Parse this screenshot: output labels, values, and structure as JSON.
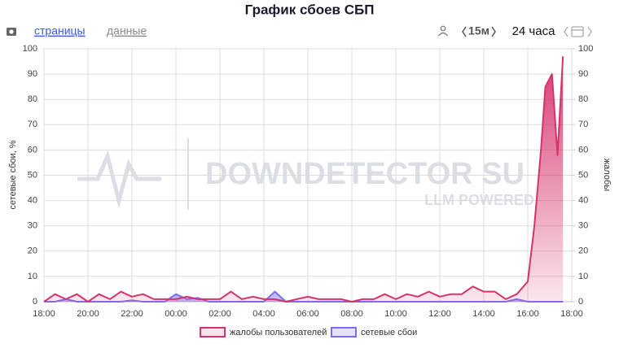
{
  "toolbar": {
    "tabs": [
      "страницы",
      "данные"
    ],
    "interval": "15м",
    "range": "24 часа"
  },
  "chart_data": {
    "type": "area",
    "title": "График сбоев СБП",
    "ylabel": "сетевые сбои, %",
    "y2label": "жалобы",
    "watermark": [
      "DOWNDETECTOR SU",
      "LLM POWERED"
    ],
    "x": [
      0,
      0.5,
      1,
      1.5,
      2,
      2.5,
      3,
      3.5,
      4,
      4.5,
      5,
      5.5,
      6,
      6.5,
      7,
      7.5,
      8,
      8.5,
      9,
      9.5,
      10,
      10.5,
      11,
      11.5,
      12,
      12.5,
      13,
      13.5,
      14,
      14.5,
      15,
      15.5,
      16,
      16.5,
      17,
      17.5,
      18,
      18.5,
      19,
      19.5,
      20,
      20.5,
      21,
      21.5,
      22,
      22.3,
      22.6,
      22.8,
      23.1,
      23.35,
      23.6
    ],
    "series": [
      {
        "name": "жалобы пользователей",
        "color": "#d6336c",
        "axis": "y2",
        "values": [
          0,
          3,
          1,
          3,
          0,
          3,
          1,
          4,
          2,
          3,
          1,
          1,
          1,
          2,
          1,
          1,
          1,
          4,
          1,
          2,
          1,
          1,
          0,
          1,
          2,
          1,
          1,
          1,
          0,
          1,
          1,
          3,
          1,
          3,
          2,
          4,
          2,
          3,
          3,
          6,
          4,
          4,
          1,
          3,
          8,
          30,
          60,
          85,
          90,
          58,
          97
        ]
      },
      {
        "name": "сетевые сбои",
        "color": "#7b6ff0",
        "values": [
          0,
          0,
          1,
          0,
          0,
          0,
          0,
          0,
          0.5,
          0,
          0,
          0,
          3,
          1,
          1.5,
          0,
          0,
          0,
          0,
          0,
          0,
          4,
          0,
          0,
          0,
          0,
          0,
          0,
          0,
          0,
          0,
          0,
          0,
          0,
          0,
          0,
          0,
          0,
          0,
          0,
          0,
          0,
          0,
          1,
          0,
          0,
          0,
          0,
          0,
          0,
          0
        ]
      }
    ],
    "xlim": [
      0,
      24
    ],
    "xticks": [
      {
        "value": 0,
        "label": "18:00"
      },
      {
        "value": 2,
        "label": "20:00"
      },
      {
        "value": 4,
        "label": "22:00"
      },
      {
        "value": 6,
        "label": "00:00"
      },
      {
        "value": 8,
        "label": "02:00"
      },
      {
        "value": 10,
        "label": "04:00"
      },
      {
        "value": 12,
        "label": "06:00"
      },
      {
        "value": 14,
        "label": "08:00"
      },
      {
        "value": 16,
        "label": "10:00"
      },
      {
        "value": 18,
        "label": "12:00"
      },
      {
        "value": 20,
        "label": "14:00"
      },
      {
        "value": 22,
        "label": "16:00"
      },
      {
        "value": 24,
        "label": "18:00"
      }
    ],
    "ylim": [
      0,
      100
    ],
    "yticks": [
      0,
      10,
      20,
      30,
      40,
      50,
      60,
      70,
      80,
      90,
      100
    ],
    "y2lim": [
      0,
      100
    ],
    "y2ticks": [
      0,
      10,
      20,
      30,
      40,
      50,
      60,
      70,
      80,
      90,
      100
    ],
    "grid": true,
    "legend": "bottom"
  }
}
